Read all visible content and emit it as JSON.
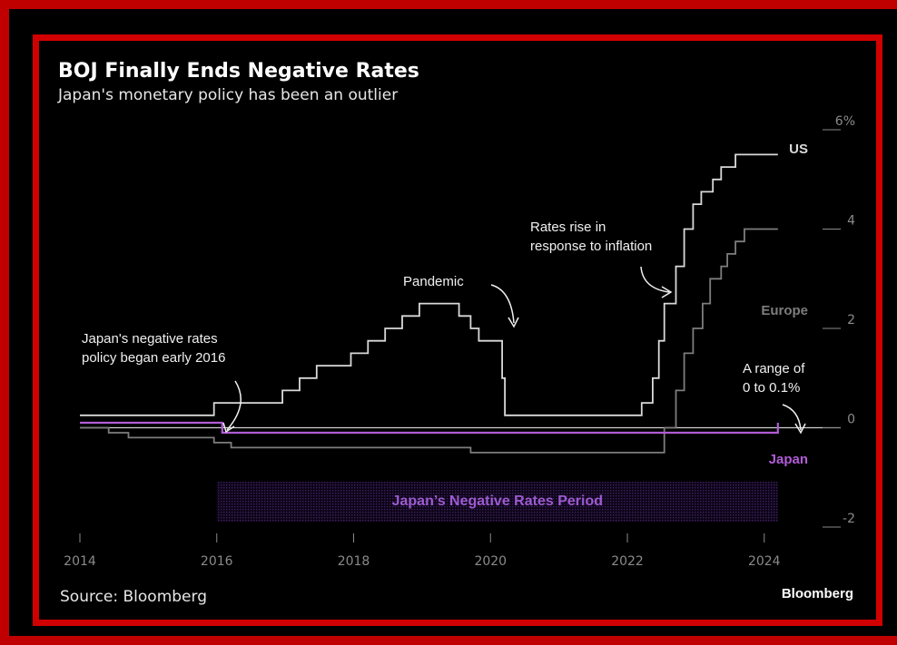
{
  "frame": {
    "outer_color": "#c00000",
    "inner_color": "#d10000"
  },
  "header": {
    "title": "BOJ Finally Ends Negative Rates",
    "subtitle": "Japan's monetary policy has been an outlier"
  },
  "footer": {
    "source": "Source: Bloomberg",
    "brand": "Bloomberg"
  },
  "chart_data": {
    "type": "line",
    "step": true,
    "title": "BOJ Finally Ends Negative Rates",
    "subtitle": "Japan's monetary policy has been an outlier",
    "x_range": [
      2014,
      2024.6
    ],
    "ylim": [
      -2,
      6
    ],
    "x_ticks": [
      2014,
      2016,
      2018,
      2020,
      2022,
      2024
    ],
    "x_tick_labels": [
      "2014",
      "2016",
      "2018",
      "2020",
      "2022",
      "2024"
    ],
    "y_ticks": [
      6,
      4,
      2,
      0,
      -2
    ],
    "y_tick_labels": [
      "6%",
      "4",
      "2",
      "0",
      "-2"
    ],
    "grid": false,
    "series": [
      {
        "name": "US",
        "color": "#d9d9d9",
        "points": [
          [
            2014.0,
            0.25
          ],
          [
            2015.96,
            0.25
          ],
          [
            2015.96,
            0.5
          ],
          [
            2016.96,
            0.5
          ],
          [
            2016.96,
            0.75
          ],
          [
            2017.21,
            0.75
          ],
          [
            2017.21,
            1.0
          ],
          [
            2017.46,
            1.0
          ],
          [
            2017.46,
            1.25
          ],
          [
            2017.96,
            1.25
          ],
          [
            2017.96,
            1.5
          ],
          [
            2018.21,
            1.5
          ],
          [
            2018.21,
            1.75
          ],
          [
            2018.46,
            1.75
          ],
          [
            2018.46,
            2.0
          ],
          [
            2018.71,
            2.0
          ],
          [
            2018.71,
            2.25
          ],
          [
            2018.96,
            2.25
          ],
          [
            2018.96,
            2.5
          ],
          [
            2019.54,
            2.5
          ],
          [
            2019.54,
            2.25
          ],
          [
            2019.71,
            2.25
          ],
          [
            2019.71,
            2.0
          ],
          [
            2019.83,
            2.0
          ],
          [
            2019.83,
            1.75
          ],
          [
            2020.17,
            1.75
          ],
          [
            2020.17,
            1.0
          ],
          [
            2020.21,
            1.0
          ],
          [
            2020.21,
            0.25
          ],
          [
            2022.21,
            0.25
          ],
          [
            2022.21,
            0.5
          ],
          [
            2022.37,
            0.5
          ],
          [
            2022.37,
            1.0
          ],
          [
            2022.46,
            1.0
          ],
          [
            2022.46,
            1.75
          ],
          [
            2022.54,
            1.75
          ],
          [
            2022.54,
            2.5
          ],
          [
            2022.71,
            2.5
          ],
          [
            2022.71,
            3.25
          ],
          [
            2022.83,
            3.25
          ],
          [
            2022.83,
            4.0
          ],
          [
            2022.96,
            4.0
          ],
          [
            2022.96,
            4.5
          ],
          [
            2023.08,
            4.5
          ],
          [
            2023.08,
            4.75
          ],
          [
            2023.25,
            4.75
          ],
          [
            2023.25,
            5.0
          ],
          [
            2023.37,
            5.0
          ],
          [
            2023.37,
            5.25
          ],
          [
            2023.58,
            5.25
          ],
          [
            2023.58,
            5.5
          ],
          [
            2024.2,
            5.5
          ]
        ]
      },
      {
        "name": "Europe",
        "color": "#7d7d7d",
        "points": [
          [
            2014.0,
            0.0
          ],
          [
            2014.42,
            0.0
          ],
          [
            2014.42,
            -0.1
          ],
          [
            2014.71,
            -0.1
          ],
          [
            2014.71,
            -0.2
          ],
          [
            2015.96,
            -0.2
          ],
          [
            2015.96,
            -0.3
          ],
          [
            2016.21,
            -0.3
          ],
          [
            2016.21,
            -0.4
          ],
          [
            2019.71,
            -0.4
          ],
          [
            2019.71,
            -0.5
          ],
          [
            2022.54,
            -0.5
          ],
          [
            2022.54,
            0.0
          ],
          [
            2022.71,
            0.0
          ],
          [
            2022.71,
            0.75
          ],
          [
            2022.83,
            0.75
          ],
          [
            2022.83,
            1.5
          ],
          [
            2022.96,
            1.5
          ],
          [
            2022.96,
            2.0
          ],
          [
            2023.1,
            2.0
          ],
          [
            2023.1,
            2.5
          ],
          [
            2023.21,
            2.5
          ],
          [
            2023.21,
            3.0
          ],
          [
            2023.37,
            3.0
          ],
          [
            2023.37,
            3.25
          ],
          [
            2023.46,
            3.25
          ],
          [
            2023.46,
            3.5
          ],
          [
            2023.58,
            3.5
          ],
          [
            2023.58,
            3.75
          ],
          [
            2023.71,
            3.75
          ],
          [
            2023.71,
            4.0
          ],
          [
            2024.2,
            4.0
          ]
        ]
      },
      {
        "name": "Japan",
        "color": "#b05cd6",
        "points": [
          [
            2014.0,
            0.1
          ],
          [
            2016.08,
            0.1
          ],
          [
            2016.08,
            -0.1
          ],
          [
            2024.2,
            -0.1
          ],
          [
            2024.2,
            0.1
          ]
        ]
      }
    ],
    "shaded_period": {
      "start": 2016.0,
      "end": 2024.2,
      "label": "Japan’s Negative Rates Period",
      "color": "#9d5bd2"
    },
    "series_labels": {
      "us": "US",
      "europe": "Europe",
      "japan": "Japan"
    },
    "annotations": {
      "japan_policy": [
        "Japan's negative rates",
        "policy began early 2016"
      ],
      "pandemic": [
        "Pandemic"
      ],
      "inflation": [
        "Rates rise in",
        "response to inflation"
      ],
      "range": [
        "A range of",
        "0 to 0.1%"
      ]
    }
  }
}
